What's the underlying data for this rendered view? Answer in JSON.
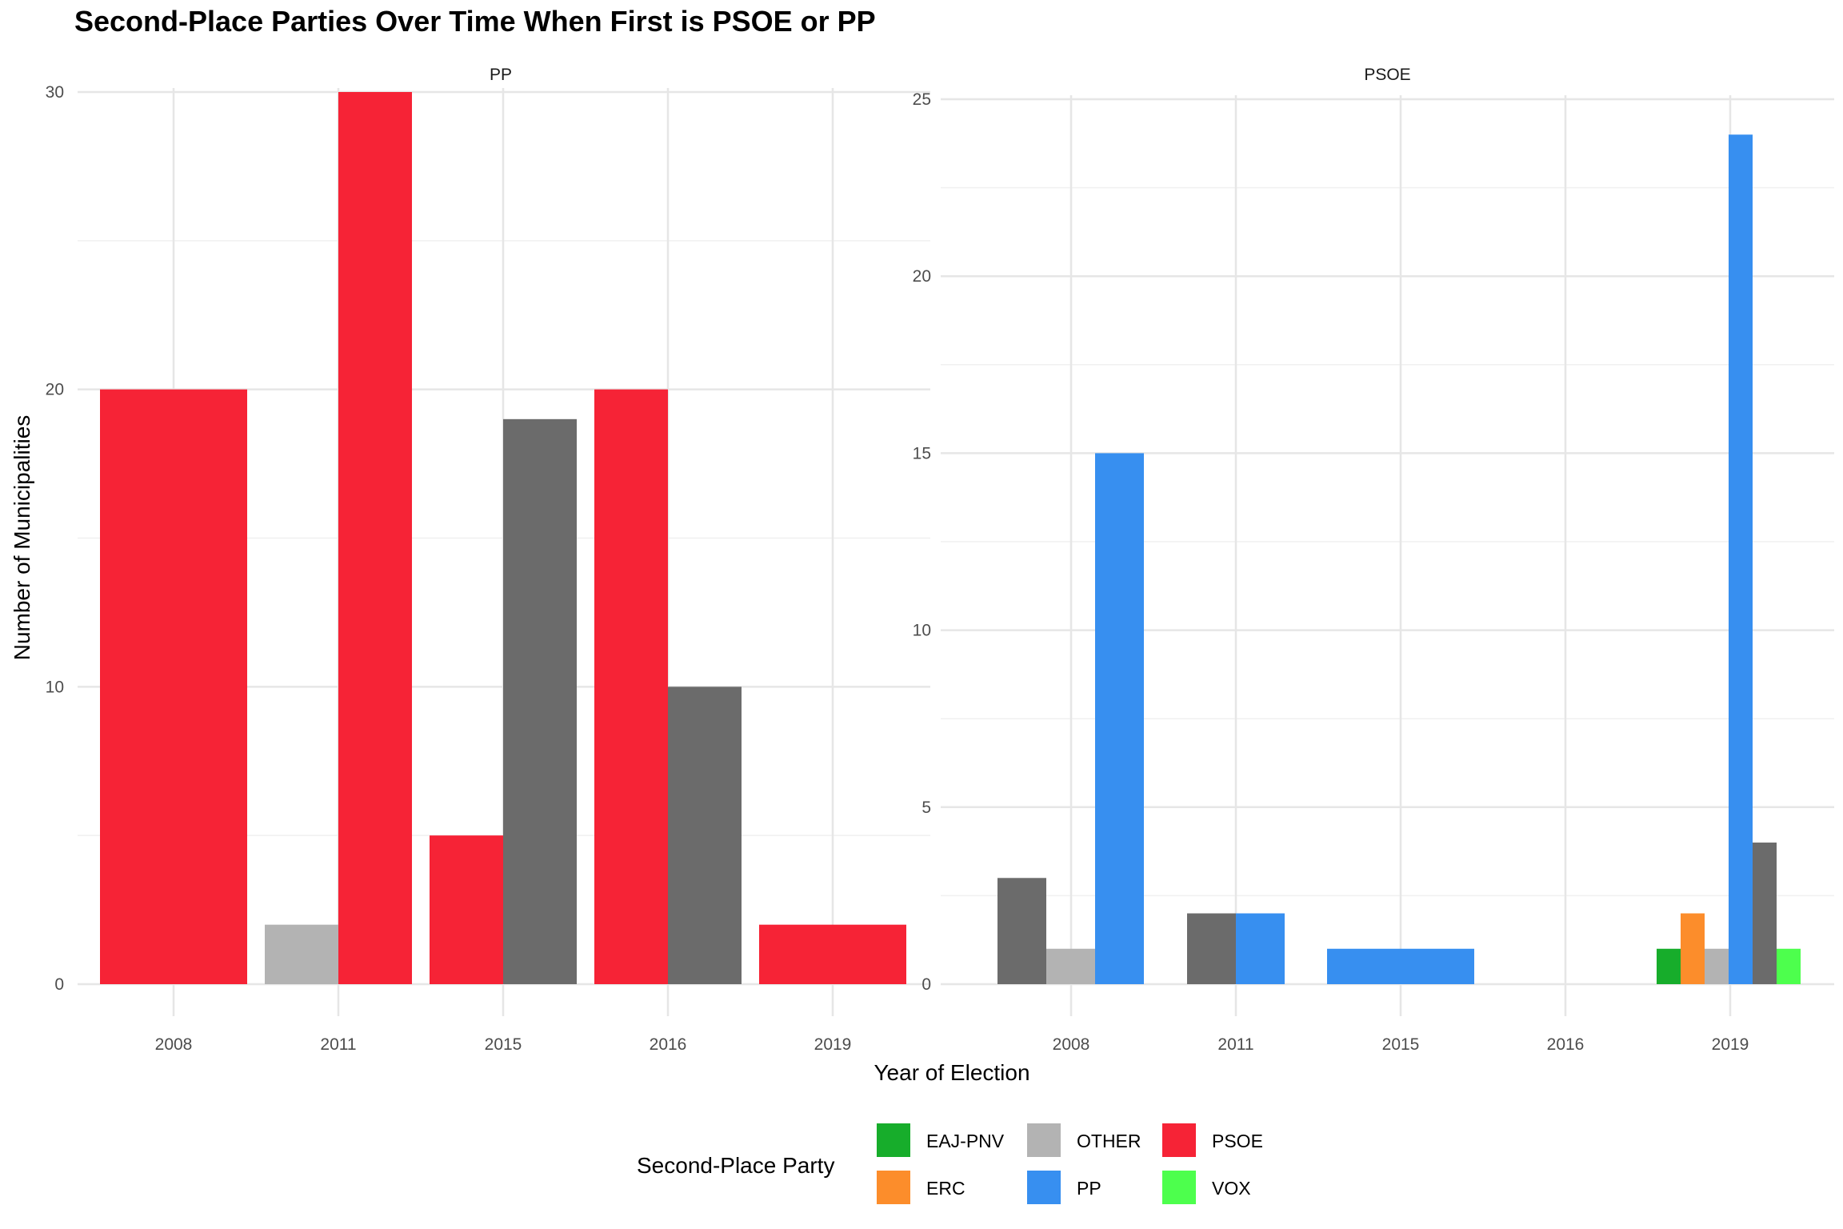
{
  "title": "Second-Place Parties Over Time When First is PSOE or PP",
  "xlabel": "Year of Election",
  "ylabel": "Number of Municipalities",
  "legend": {
    "title": "Second-Place Party",
    "items": [
      {
        "name": "EAJ-PNV",
        "color": "#17ad2b"
      },
      {
        "name": "ERC",
        "color": "#fc8d2b"
      },
      {
        "name": "OTHER",
        "color": "#b3b3b3"
      },
      {
        "name": "PP",
        "color": "#378ff0"
      },
      {
        "name": "PSOE",
        "color": "#f62336"
      },
      {
        "name": "VOX",
        "color": "#4dff4d"
      }
    ]
  },
  "colors": {
    "EAJ-PNV": "#17ad2b",
    "ERC": "#fc8d2b",
    "OTHER": "#b3b3b3",
    "PP": "#378ff0",
    "PSOE": "#f62336",
    "VOX": "#4dff4d",
    "Unlabeled": "#6b6b6b"
  },
  "chart_data": [
    {
      "type": "bar",
      "facet": "PP",
      "categories": [
        "2008",
        "2011",
        "2015",
        "2016",
        "2019"
      ],
      "ylim": [
        0,
        30
      ],
      "yticks": [
        0,
        10,
        20,
        30
      ],
      "groups": [
        {
          "year": "2008",
          "bars": [
            {
              "party": "PSOE",
              "value": 20
            }
          ]
        },
        {
          "year": "2011",
          "bars": [
            {
              "party": "OTHER",
              "value": 2
            },
            {
              "party": "PSOE",
              "value": 30
            }
          ]
        },
        {
          "year": "2015",
          "bars": [
            {
              "party": "PSOE",
              "value": 5
            },
            {
              "party": "Unlabeled",
              "value": 19
            }
          ]
        },
        {
          "year": "2016",
          "bars": [
            {
              "party": "PSOE",
              "value": 20
            },
            {
              "party": "Unlabeled",
              "value": 10
            }
          ]
        },
        {
          "year": "2019",
          "bars": [
            {
              "party": "PSOE",
              "value": 2
            }
          ]
        }
      ]
    },
    {
      "type": "bar",
      "facet": "PSOE",
      "categories": [
        "2008",
        "2011",
        "2015",
        "2016",
        "2019"
      ],
      "ylim": [
        0,
        25
      ],
      "yticks": [
        0,
        5,
        10,
        15,
        20,
        25
      ],
      "groups": [
        {
          "year": "2008",
          "bars": [
            {
              "party": "Unlabeled",
              "value": 3
            },
            {
              "party": "OTHER",
              "value": 1
            },
            {
              "party": "PP",
              "value": 15
            }
          ]
        },
        {
          "year": "2011",
          "bars": [
            {
              "party": "Unlabeled",
              "value": 2
            },
            {
              "party": "PP",
              "value": 2
            }
          ]
        },
        {
          "year": "2015",
          "bars": [
            {
              "party": "PP",
              "value": 1
            }
          ]
        },
        {
          "year": "2016",
          "bars": []
        },
        {
          "year": "2019",
          "bars": [
            {
              "party": "EAJ-PNV",
              "value": 1
            },
            {
              "party": "ERC",
              "value": 2
            },
            {
              "party": "OTHER",
              "value": 1
            },
            {
              "party": "PP",
              "value": 24
            },
            {
              "party": "Unlabeled",
              "value": 4
            },
            {
              "party": "VOX",
              "value": 1
            }
          ]
        }
      ]
    }
  ]
}
